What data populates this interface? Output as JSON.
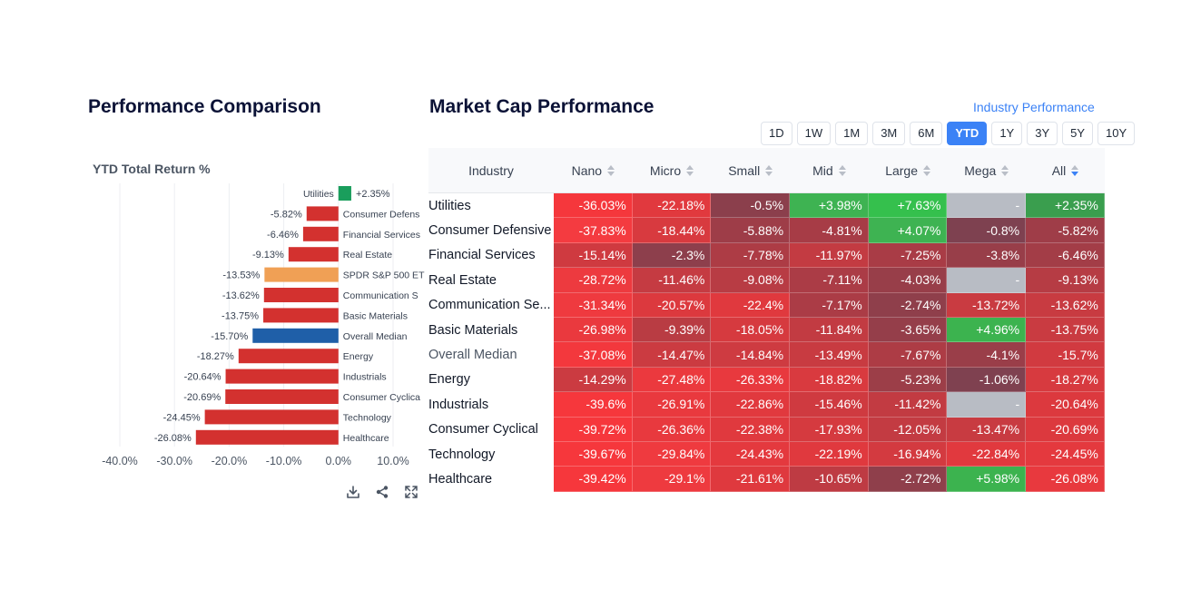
{
  "left_title": "Performance Comparison",
  "right_title": "Market Cap Performance",
  "industry_link": "Industry Performance",
  "chart_tools": [
    "download-icon",
    "share-icon",
    "expand-icon"
  ],
  "periods": [
    "1D",
    "1W",
    "1M",
    "3M",
    "6M",
    "YTD",
    "1Y",
    "3Y",
    "5Y",
    "10Y"
  ],
  "active_period": "YTD",
  "colors": {
    "bar_default": "#d3312f",
    "bar_positive": "#1a9e5c",
    "bar_benchmark": "#f0a055",
    "bar_median": "#1f5fa8",
    "cell_empty": "#b8bcc4"
  },
  "chart_data": {
    "type": "bar",
    "orientation": "horizontal",
    "title": "YTD Total Return %",
    "xlim": [
      -40,
      10
    ],
    "xticks": [
      "-40.0%",
      "-30.0%",
      "-20.0%",
      "-10.0%",
      "0.0%",
      "10.0%"
    ],
    "categories": [
      "Utilities",
      "Consumer Defens",
      "Financial Services",
      "Real Estate",
      "SPDR S&P 500 ET",
      "Communication S",
      "Basic Materials",
      "Overall Median",
      "Energy",
      "Industrials",
      "Consumer Cyclica",
      "Technology",
      "Healthcare"
    ],
    "values": [
      2.35,
      -5.82,
      -6.46,
      -9.13,
      -13.53,
      -13.62,
      -13.75,
      -15.7,
      -18.27,
      -20.64,
      -20.69,
      -24.45,
      -26.08
    ],
    "value_labels": [
      "+2.35%",
      "-5.82%",
      "-6.46%",
      "-9.13%",
      "-13.53%",
      "-13.62%",
      "-13.75%",
      "-15.70%",
      "-18.27%",
      "-20.64%",
      "-20.69%",
      "-24.45%",
      "-26.08%"
    ],
    "bar_colors": [
      "#1a9e5c",
      "#d3312f",
      "#d3312f",
      "#d3312f",
      "#f0a055",
      "#d3312f",
      "#d3312f",
      "#1f5fa8",
      "#d3312f",
      "#d3312f",
      "#d3312f",
      "#d3312f",
      "#d3312f"
    ],
    "grid": "vertical"
  },
  "table": {
    "header_first": "Industry",
    "columns": [
      "Nano",
      "Micro",
      "Small",
      "Mid",
      "Large",
      "Mega",
      "All"
    ],
    "sorted_column": "All",
    "rows": [
      {
        "label": "Utilities",
        "values": [
          "-36.03%",
          "-22.18%",
          "-0.5%",
          "+3.98%",
          "+7.63%",
          "-",
          "+2.35%"
        ],
        "colors": [
          "#f5373c",
          "#e1393e",
          "#8b3f4c",
          "#3eb352",
          "#35c04d",
          "#b8bcc4",
          "#3a9e4e"
        ]
      },
      {
        "label": "Consumer Defensive",
        "values": [
          "-37.83%",
          "-18.44%",
          "-5.88%",
          "-4.81%",
          "+4.07%",
          "-0.8%",
          "-5.82%"
        ],
        "colors": [
          "#f43b40",
          "#d83a3f",
          "#9e3d48",
          "#a73c46",
          "#3eb352",
          "#7e4150",
          "#9f3d48"
        ]
      },
      {
        "label": "Financial Services",
        "values": [
          "-15.14%",
          "-2.3%",
          "-7.78%",
          "-11.97%",
          "-7.25%",
          "-3.8%",
          "-6.46%"
        ],
        "colors": [
          "#cf3a40",
          "#8d3f4c",
          "#ad3c45",
          "#c33b42",
          "#a93c46",
          "#983e49",
          "#a33d47"
        ]
      },
      {
        "label": "Real Estate",
        "values": [
          "-28.72%",
          "-11.46%",
          "-9.08%",
          "-7.11%",
          "-4.03%",
          "-",
          "-9.13%"
        ],
        "colors": [
          "#ed3a3f",
          "#c53b42",
          "#b83c44",
          "#ab3c46",
          "#983e49",
          "#b8bcc4",
          "#b63c44"
        ]
      },
      {
        "label": "Communication Se...",
        "values": [
          "-31.34%",
          "-20.57%",
          "-22.4%",
          "-7.17%",
          "-2.74%",
          "-13.72%",
          "-13.62%"
        ],
        "colors": [
          "#ef3a3f",
          "#dc393e",
          "#e0393e",
          "#ab3c46",
          "#8f3f4b",
          "#c93b41",
          "#c83b41"
        ]
      },
      {
        "label": "Basic Materials",
        "values": [
          "-26.98%",
          "-9.39%",
          "-18.05%",
          "-11.84%",
          "-3.65%",
          "+4.96%",
          "-13.75%"
        ],
        "colors": [
          "#ea393e",
          "#b93c43",
          "#d63a3f",
          "#c23b42",
          "#953e4a",
          "#3cb34f",
          "#c93b41"
        ]
      },
      {
        "label": "Overall Median",
        "values": [
          "-37.08%",
          "-14.47%",
          "-14.84%",
          "-13.49%",
          "-7.67%",
          "-4.1%",
          "-15.7%"
        ],
        "colors": [
          "#f3383d",
          "#cb3b41",
          "#ce3b41",
          "#c83b41",
          "#ad3c45",
          "#9a3e49",
          "#d13a40"
        ]
      },
      {
        "label": "Energy",
        "values": [
          "-14.29%",
          "-27.48%",
          "-26.33%",
          "-18.82%",
          "-5.23%",
          "-1.06%",
          "-18.27%"
        ],
        "colors": [
          "#cb3b41",
          "#eb393e",
          "#e8393e",
          "#d93a3f",
          "#9c3e48",
          "#7f4150",
          "#d73a3f"
        ]
      },
      {
        "label": "Industrials",
        "values": [
          "-39.6%",
          "-26.91%",
          "-22.86%",
          "-15.46%",
          "-11.42%",
          "-",
          "-20.64%"
        ],
        "colors": [
          "#f6373c",
          "#e9393e",
          "#e1393e",
          "#cf3a40",
          "#c23b42",
          "#b8bcc4",
          "#dc393e"
        ]
      },
      {
        "label": "Consumer Cyclical",
        "values": [
          "-39.72%",
          "-26.36%",
          "-22.38%",
          "-17.93%",
          "-12.05%",
          "-13.47%",
          "-20.69%"
        ],
        "colors": [
          "#f6373c",
          "#e8393e",
          "#e0393e",
          "#d53a3f",
          "#c33b42",
          "#c83b41",
          "#dc393e"
        ]
      },
      {
        "label": "Technology",
        "values": [
          "-39.67%",
          "-29.84%",
          "-24.43%",
          "-22.19%",
          "-16.94%",
          "-22.84%",
          "-24.45%"
        ],
        "colors": [
          "#f6373c",
          "#ef3a3f",
          "#e4393e",
          "#e0393e",
          "#d33a40",
          "#e1393e",
          "#e4393e"
        ]
      },
      {
        "label": "Healthcare",
        "values": [
          "-39.42%",
          "-29.1%",
          "-21.61%",
          "-10.65%",
          "-2.72%",
          "+5.98%",
          "-26.08%"
        ],
        "colors": [
          "#f6373c",
          "#ee3a3f",
          "#df393e",
          "#be3b43",
          "#8f3f4b",
          "#3cb34f",
          "#e8393e"
        ]
      }
    ]
  }
}
